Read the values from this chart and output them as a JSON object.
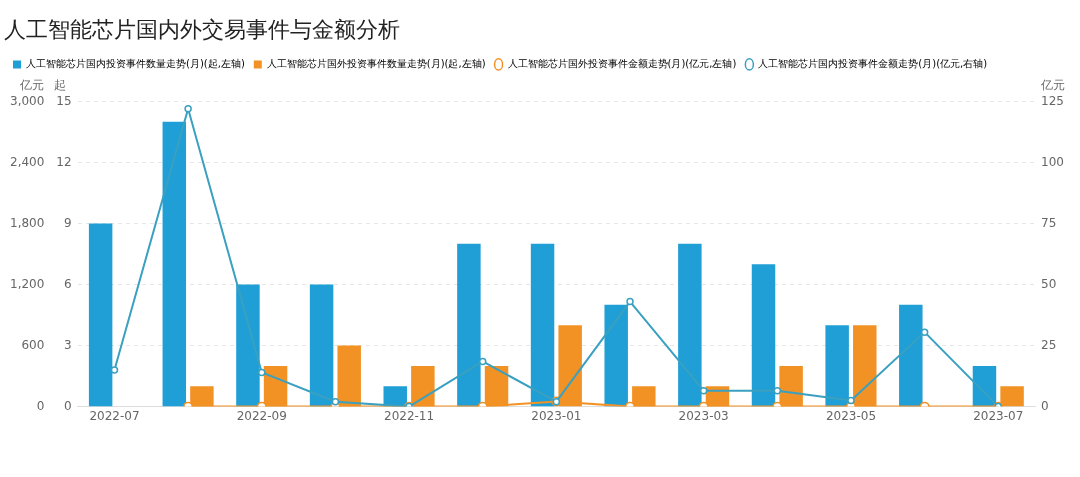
{
  "chart_data": {
    "type": "bar",
    "title": "人工智能芯片国内外交易事件与金额分析",
    "categories": [
      "2022-07",
      null,
      "2022-09",
      null,
      "2022-11",
      null,
      "2023-01",
      null,
      "2023-03",
      null,
      "2023-05",
      null,
      "2023-07"
    ],
    "series": [
      {
        "name": "人工智能芯片国内投资事件数量走势(月)(起,左轴)",
        "color": "#1f9fd5",
        "axis": "y3",
        "values": [
          9,
          14,
          6,
          6,
          1,
          8,
          8,
          5,
          8,
          7,
          4,
          5,
          2
        ]
      },
      {
        "name": "人工智能芯片国外投资事件数量走势(月)(起,左轴)",
        "color": "#f39224",
        "axis": "y3",
        "values": [
          0,
          1,
          2,
          3,
          2,
          2,
          4,
          1,
          1,
          2,
          4,
          0,
          1
        ]
      },
      {
        "name": "人工智能芯片国外投资事件金额走势(月)(亿元,左轴)",
        "color": "#f39224",
        "type": "line",
        "axis": "y",
        "values": [
          null,
          0,
          0,
          0,
          0,
          0,
          50,
          0,
          0,
          0,
          0,
          0,
          0
        ]
      },
      {
        "name": "人工智能芯片国内投资事件金额走势(月)(亿元,右轴)",
        "color": "#3aa0c0",
        "type": "line",
        "axis": "y2",
        "values": [
          15,
          122,
          14,
          2,
          0,
          18.5,
          2,
          43,
          6.5,
          6.5,
          2.5,
          30.5,
          0
        ]
      }
    ],
    "ylabel": "亿元",
    "ylim": [
      0,
      3000
    ],
    "yticks": [
      {
        "value": 0,
        "label": "0"
      },
      {
        "value": 600,
        "label": "600"
      },
      {
        "value": 1200,
        "label": "1,200"
      },
      {
        "value": 1800,
        "label": "1,800"
      },
      {
        "value": 2400,
        "label": "2,400"
      },
      {
        "value": 3000,
        "label": "3,000"
      }
    ],
    "y3label": "起",
    "y3lim": [
      0,
      15
    ],
    "y3ticks": [
      0,
      3,
      6,
      9,
      12,
      15
    ],
    "y2label": "亿元",
    "y2lim": [
      0,
      125
    ],
    "y2ticks": [
      0,
      25,
      50,
      75,
      100,
      125
    ],
    "grid": "y",
    "legend": "top left",
    "marker": "circle",
    "line_style": "solid"
  }
}
